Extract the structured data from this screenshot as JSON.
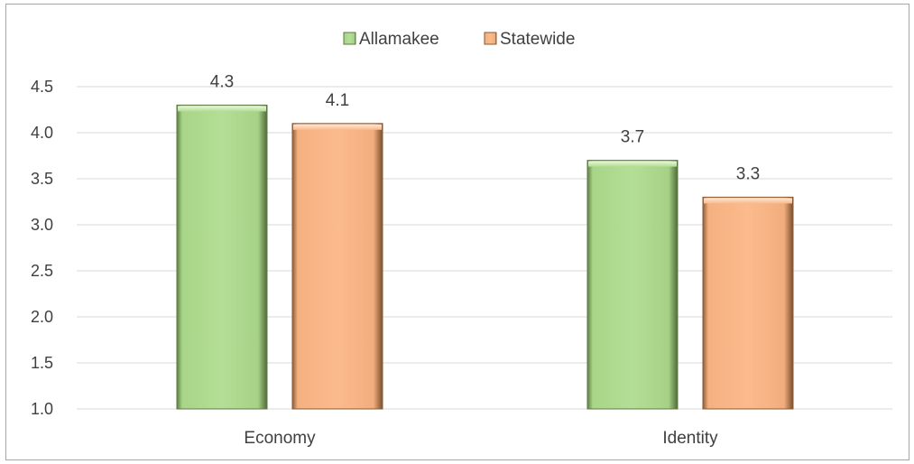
{
  "chart_data": {
    "type": "bar",
    "categories": [
      "Economy",
      "Identity"
    ],
    "series": [
      {
        "name": "Allamakee",
        "values": [
          4.3,
          3.7
        ],
        "color": "#b3dc94",
        "edge_color": "#5e7a46"
      },
      {
        "name": "Statewide",
        "values": [
          4.1,
          3.3
        ],
        "color": "#fbb98b",
        "edge_color": "#8a5a36"
      }
    ],
    "data_labels": [
      [
        "4.3",
        "3.7"
      ],
      [
        "4.1",
        "3.3"
      ]
    ],
    "ylim": [
      1.0,
      4.5
    ],
    "yticks": [
      "1.0",
      "1.5",
      "2.0",
      "2.5",
      "3.0",
      "3.5",
      "4.0",
      "4.5"
    ],
    "grid": true,
    "legend_position": "top-center",
    "xlabel": "",
    "ylabel": "",
    "title": ""
  }
}
